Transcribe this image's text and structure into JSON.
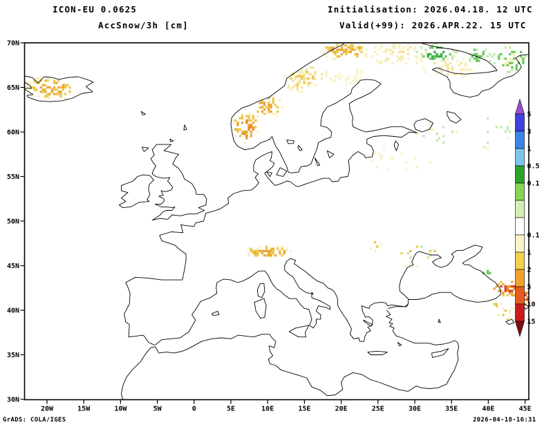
{
  "header": {
    "model": "ICON-EU 0.0625",
    "variable": "AccSnow/3h [cm]",
    "initialisation": "Initialisation: 2026.04.18. 12 UTC",
    "valid": "Valid(+99): 2026.APR.22. 15 UTC"
  },
  "footer": {
    "left": "GrADS: COLA/IGES",
    "right": "2026-04-18-16:31"
  },
  "chart_data": {
    "type": "heatmap",
    "subtype": "geographic-forecast-map",
    "model": "ICON-EU 0.0625",
    "title": "AccSnow/3h [cm]",
    "units": "cm",
    "initialisation": "2026.04.18. 12 UTC",
    "forecast_hour": "+99",
    "valid": "2026.APR.22. 15 UTC",
    "grid": false,
    "legend_position": "right",
    "lon_range_deg": [
      -23.1,
      45.4
    ],
    "lat_range_deg": [
      30,
      70
    ],
    "lon_ticks": [
      "20W",
      "15W",
      "10W",
      "5W",
      "0",
      "5E",
      "10E",
      "15E",
      "20E",
      "25E",
      "30E",
      "35E",
      "40E",
      "45E"
    ],
    "lat_ticks": [
      "70N",
      "65N",
      "60N",
      "55N",
      "50N",
      "45N",
      "40N",
      "35N",
      "30N"
    ],
    "colorbar": {
      "orientation": "vertical",
      "arrow_top_color": "#9a4fd0",
      "arrow_bottom_color": "#7a1010",
      "segment_colors": [
        "#4040dd",
        "#3a86e8",
        "#7cc4ee",
        "#28a428",
        "#85d455",
        "#d2f0b4",
        "#ffffff",
        "#faf3c8",
        "#f0d24e",
        "#eea22c",
        "#e55c1e",
        "#cc1a1a"
      ],
      "boundary_labels": [
        "5",
        "3",
        "1",
        "0.5",
        "0.1",
        "",
        "",
        "0.1",
        "1",
        "2",
        "5",
        "10",
        "15"
      ]
    },
    "snow_regions": [
      {
        "name": "iceland",
        "lon": -19.6,
        "lat": 65.0,
        "rlon": 3.4,
        "rlat": 1.35,
        "density": 0.5,
        "palette": [
          "#f8f1c3",
          "#ecc84e",
          "#e9a83a"
        ],
        "value_range_cm": "0.1-5",
        "seed": 11
      },
      {
        "name": "iceland-northwest",
        "lon": -22.0,
        "lat": 65.9,
        "rlon": 1.5,
        "rlat": 0.6,
        "density": 0.45,
        "palette": [
          "#f8f1c3",
          "#ecc84e"
        ],
        "value_range_cm": "0.1-2",
        "seed": 12
      },
      {
        "name": "norway-southwest-mountains",
        "lon": 6.9,
        "lat": 60.7,
        "rlon": 2.0,
        "rlat": 1.8,
        "density": 0.6,
        "palette": [
          "#f8f1c3",
          "#ecc84e",
          "#e9a83a",
          "#ee8822"
        ],
        "value_range_cm": "0.1-10",
        "seed": 13
      },
      {
        "name": "norway-central-mountains",
        "lon": 9.8,
        "lat": 62.9,
        "rlon": 2.4,
        "rlat": 1.3,
        "density": 0.5,
        "palette": [
          "#f8f1c3",
          "#ecc84e",
          "#e9a83a"
        ],
        "value_range_cm": "0.1-5",
        "seed": 14
      },
      {
        "name": "norway-nordland",
        "lon": 14.2,
        "lat": 65.9,
        "rlon": 2.4,
        "rlat": 1.5,
        "density": 0.4,
        "palette": [
          "#f8f1c3",
          "#f3e49a",
          "#ecc84e"
        ],
        "value_range_cm": "0.1-2",
        "seed": 15
      },
      {
        "name": "norway-arctic-coast",
        "lon": 20.5,
        "lat": 69.2,
        "rlon": 3.6,
        "rlat": 1.1,
        "density": 0.5,
        "palette": [
          "#f8f1c3",
          "#ecc84e",
          "#e9a83a"
        ],
        "value_range_cm": "0.1-5",
        "seed": 16
      },
      {
        "name": "finnmark-lapland-wash",
        "lon": 27.5,
        "lat": 68.9,
        "rlon": 5.0,
        "rlat": 1.5,
        "density": 0.33,
        "palette": [
          "#f8f1c3",
          "#f8f1c3",
          "#f3e49a"
        ],
        "value_range_cm": "0.1-1",
        "seed": 17
      },
      {
        "name": "kola-green",
        "lon": 32.8,
        "lat": 69.0,
        "rlon": 3.0,
        "rlat": 1.2,
        "density": 0.42,
        "palette": [
          "#c2e9b0",
          "#6fc767",
          "#3cb043"
        ],
        "value_range_cm": "0.1-1",
        "seed": 18
      },
      {
        "name": "kola-south-wash",
        "lon": 34.5,
        "lat": 67.4,
        "rlon": 3.8,
        "rlat": 1.3,
        "density": 0.25,
        "palette": [
          "#f8f1c3",
          "#f3e49a"
        ],
        "value_range_cm": "0.1-1",
        "seed": 19
      },
      {
        "name": "pechora-green",
        "lon": 38.5,
        "lat": 68.6,
        "rlon": 2.0,
        "rlat": 1.2,
        "density": 0.35,
        "palette": [
          "#c2e9b0",
          "#6fc767"
        ],
        "value_range_cm": "0.1-1",
        "seed": 33
      },
      {
        "name": "kanin-green",
        "lon": 42.8,
        "lat": 68.2,
        "rlon": 2.6,
        "rlat": 1.6,
        "density": 0.42,
        "palette": [
          "#c2e9b0",
          "#6fc767",
          "#f8f1c3"
        ],
        "value_range_cm": "0.1-1",
        "seed": 20
      },
      {
        "name": "bothnia-wash",
        "lon": 21.0,
        "lat": 66.2,
        "rlon": 2.8,
        "rlat": 1.1,
        "density": 0.28,
        "palette": [
          "#f8f1c3"
        ],
        "value_range_cm": "0.1-0.5",
        "seed": 21
      },
      {
        "name": "sweden-north",
        "lon": 16.0,
        "lat": 66.6,
        "rlon": 2.0,
        "rlat": 1.2,
        "density": 0.33,
        "palette": [
          "#f8f1c3",
          "#f3e49a",
          "#ecc84e"
        ],
        "value_range_cm": "0.1-2",
        "seed": 22
      },
      {
        "name": "baltic-states-faint",
        "lon": 27.5,
        "lat": 56.8,
        "rlon": 4.5,
        "rlat": 1.8,
        "density": 0.1,
        "palette": [
          "#f8f1c3"
        ],
        "value_range_cm": "0.1-0.5",
        "seed": 23
      },
      {
        "name": "northwest-russia-faint",
        "lon": 33.5,
        "lat": 59.8,
        "rlon": 3.5,
        "rlat": 1.5,
        "density": 0.1,
        "palette": [
          "#f8f1c3",
          "#c2e9b0"
        ],
        "value_range_cm": "0.1-0.5",
        "seed": 24
      },
      {
        "name": "russia-east-faint",
        "lon": 41.0,
        "lat": 60.0,
        "rlon": 3.5,
        "rlat": 2.5,
        "density": 0.07,
        "palette": [
          "#f8f1c3",
          "#c2e9b0"
        ],
        "value_range_cm": "0.1-0.5",
        "seed": 34
      },
      {
        "name": "alps",
        "lon": 10.0,
        "lat": 46.7,
        "rlon": 3.6,
        "rlat": 0.85,
        "density": 0.55,
        "palette": [
          "#f8f1c3",
          "#ecc84e",
          "#e9a83a"
        ],
        "value_range_cm": "0.1-5",
        "seed": 25
      },
      {
        "name": "ukraine-moldova-specks",
        "lon": 30.5,
        "lat": 46.3,
        "rlon": 3.8,
        "rlat": 1.5,
        "density": 0.09,
        "palette": [
          "#f8f1c3",
          "#ecc84e",
          "#c2e9b0"
        ],
        "value_range_cm": "0.1-1",
        "seed": 26
      },
      {
        "name": "carpathian-specks",
        "lon": 24.6,
        "lat": 47.4,
        "rlon": 1.5,
        "rlat": 0.8,
        "density": 0.14,
        "palette": [
          "#f8f1c3",
          "#ecc84e"
        ],
        "value_range_cm": "0.1-1",
        "seed": 27
      },
      {
        "name": "caucasus",
        "lon": 42.6,
        "lat": 42.6,
        "rlon": 2.3,
        "rlat": 0.95,
        "density": 0.55,
        "palette": [
          "#ecc84e",
          "#e9a83a",
          "#ee8822",
          "#d84028"
        ],
        "value_range_cm": "1-15",
        "seed": 28
      },
      {
        "name": "caucasus-east-edge",
        "lon": 44.8,
        "lat": 41.6,
        "rlon": 0.9,
        "rlat": 1.1,
        "density": 0.5,
        "palette": [
          "#e9a83a",
          "#ee8822",
          "#d84028"
        ],
        "value_range_cm": "2-15",
        "seed": 29
      },
      {
        "name": "west-caucasus-green",
        "lon": 39.6,
        "lat": 44.3,
        "rlon": 0.8,
        "rlat": 0.5,
        "density": 0.4,
        "palette": [
          "#c2e9b0",
          "#6fc767"
        ],
        "value_range_cm": "0.1-1",
        "seed": 30
      },
      {
        "name": "east-turkey-specks",
        "lon": 42.2,
        "lat": 39.6,
        "rlon": 1.7,
        "rlat": 0.9,
        "density": 0.18,
        "palette": [
          "#f8f1c3",
          "#ecc84e"
        ],
        "value_range_cm": "0.1-2",
        "seed": 31
      },
      {
        "name": "pontic-specks",
        "lon": 40.5,
        "lat": 40.8,
        "rlon": 1.2,
        "rlat": 0.6,
        "density": 0.2,
        "palette": [
          "#f8f1c3",
          "#ecc84e"
        ],
        "value_range_cm": "0.1-2",
        "seed": 32
      }
    ]
  }
}
